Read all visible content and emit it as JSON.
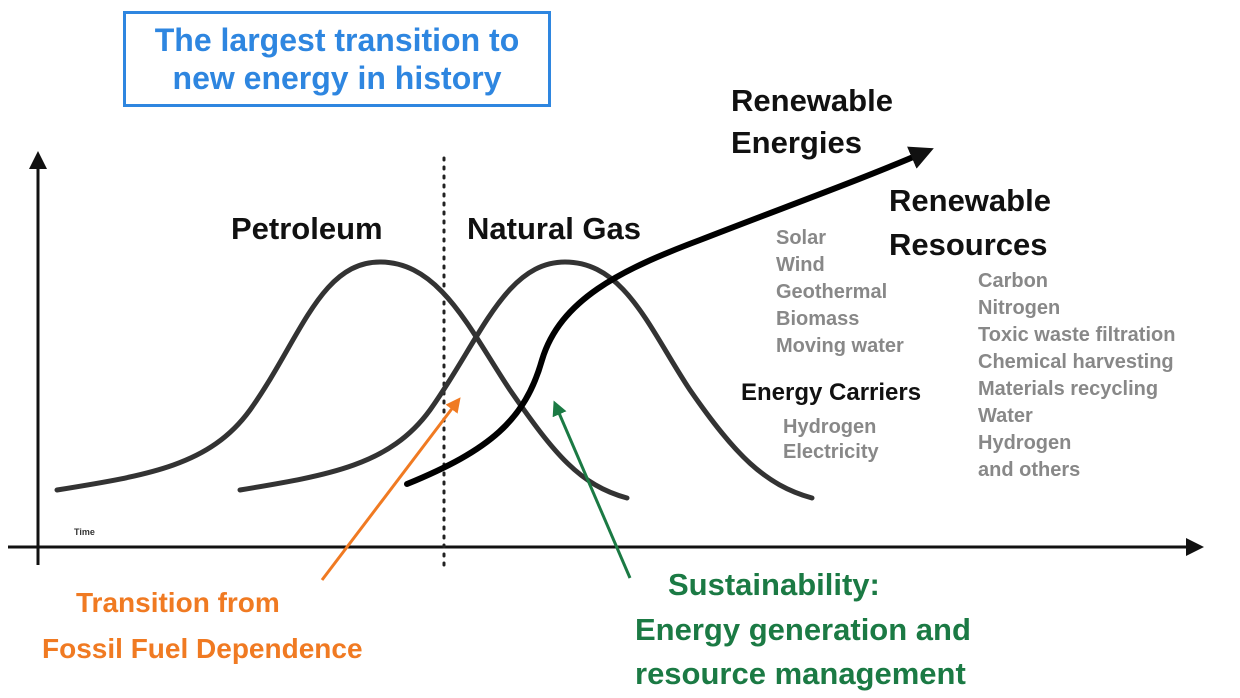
{
  "title": {
    "line1": "The largest transition to",
    "line2": "new energy in history"
  },
  "axis": {
    "x_label": "Time"
  },
  "curves": {
    "petroleum": "Petroleum",
    "natural_gas": "Natural Gas"
  },
  "renewable_energies": {
    "heading_line1": "Renewable",
    "heading_line2": "Energies",
    "items": [
      "Solar",
      "Wind",
      "Geothermal",
      "Biomass",
      "Moving water"
    ]
  },
  "energy_carriers": {
    "heading": "Energy Carriers",
    "items": [
      "Hydrogen",
      "Electricity"
    ]
  },
  "renewable_resources": {
    "heading_line1": "Renewable",
    "heading_line2": "Resources",
    "items": [
      "Carbon",
      "Nitrogen",
      "Toxic waste filtration",
      "Chemical harvesting",
      "Materials recycling",
      "Water",
      "Hydrogen",
      "and others"
    ]
  },
  "transition": {
    "line1": "Transition from",
    "line2": "Fossil Fuel Dependence"
  },
  "sustainability": {
    "line1": "Sustainability:",
    "line2": "Energy generation and",
    "line3": "resource management"
  },
  "colors": {
    "title": "#2e86e0",
    "curve": "#333333",
    "transition": "#f07a22",
    "sustainability": "#1b7a44",
    "list_text": "#888888"
  }
}
